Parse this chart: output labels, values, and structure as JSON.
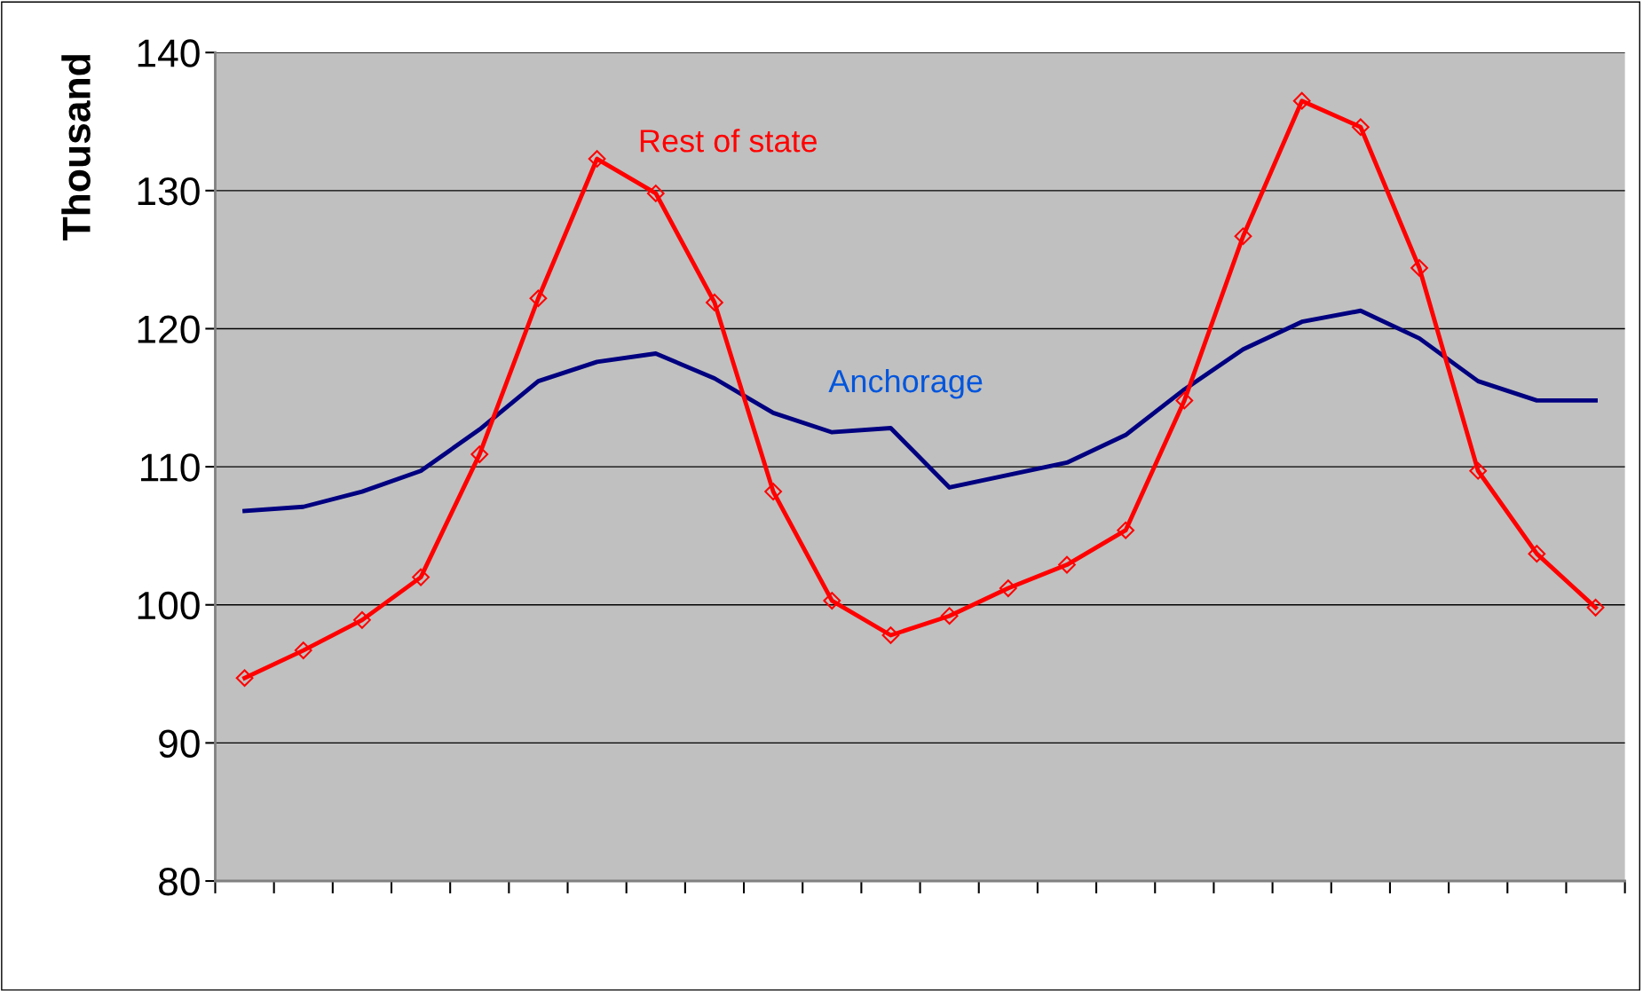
{
  "chart_data": {
    "type": "line",
    "ylabel": "Thousand",
    "categories": [
      null,
      null,
      null,
      null,
      null,
      null,
      null,
      null,
      null,
      null,
      null,
      null,
      null,
      null,
      null,
      null,
      null,
      null,
      null,
      null,
      null,
      null,
      null,
      null
    ],
    "series": [
      {
        "name": "Rest of state",
        "color": "#ff0000",
        "marker": "diamond",
        "values": [
          94.7,
          96.7,
          98.9,
          102.0,
          110.9,
          122.2,
          132.3,
          129.8,
          121.9,
          108.2,
          100.3,
          97.8,
          99.2,
          101.2,
          102.9,
          105.4,
          114.8,
          126.7,
          136.5,
          134.6,
          124.4,
          109.7,
          103.7,
          99.8
        ]
      },
      {
        "name": "Anchorage",
        "color": "#000080",
        "marker": "none",
        "values": [
          106.8,
          107.1,
          108.2,
          109.7,
          112.7,
          116.2,
          117.6,
          118.2,
          116.4,
          113.9,
          112.5,
          112.8,
          108.5,
          109.4,
          110.3,
          112.3,
          115.6,
          118.5,
          120.5,
          121.3,
          119.3,
          116.2,
          114.8,
          114.8
        ]
      }
    ],
    "ylim": [
      80,
      140
    ],
    "yticks": [
      80,
      90,
      100,
      110,
      120,
      130,
      140
    ],
    "grid": "y",
    "legend": false,
    "tick_labels": "y"
  }
}
